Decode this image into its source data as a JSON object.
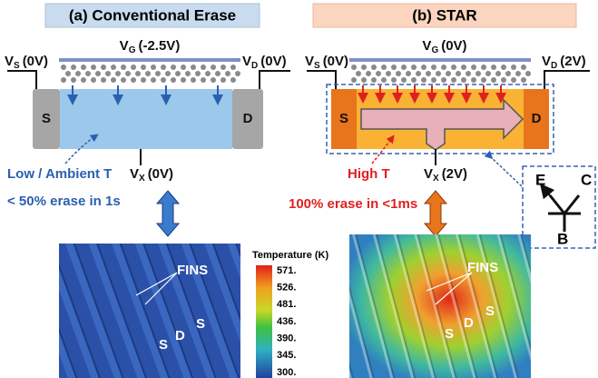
{
  "panel_a": {
    "title": "(a) Conventional Erase",
    "vg": {
      "main": "V",
      "sub": "G",
      "rest": "(-2.5V)"
    },
    "vs": {
      "main": "V",
      "sub": "S",
      "rest": "(0V)"
    },
    "vd": {
      "main": "V",
      "sub": "D",
      "rest": "(0V)"
    },
    "vx": {
      "main": "V",
      "sub": "X",
      "rest": "(0V)"
    },
    "source": "S",
    "drain": "D",
    "temperature": "Low / Ambient T",
    "erase": "< 50% erase in 1s",
    "image": {
      "label": "FINS",
      "terminals": [
        "S",
        "D",
        "S"
      ]
    }
  },
  "panel_b": {
    "title": "(b) STAR",
    "vg": {
      "main": "V",
      "sub": "G",
      "rest": "(0V)"
    },
    "vs": {
      "main": "V",
      "sub": "S",
      "rest": "(0V)"
    },
    "vd": {
      "main": "V",
      "sub": "D",
      "rest": "(2V)"
    },
    "vx": {
      "main": "V",
      "sub": "X",
      "rest": "(2V)"
    },
    "source": "S",
    "drain": "D",
    "temperature": "High T",
    "erase": "100% erase in <1ms",
    "transistor": {
      "e": "E",
      "c": "C",
      "b": "B"
    },
    "image": {
      "label": "FINS",
      "terminals": [
        "S",
        "D",
        "S"
      ]
    }
  },
  "colorbar": {
    "title": "Temperature (K)",
    "ticks": [
      "571.",
      "526.",
      "481.",
      "436.",
      "390.",
      "345.",
      "300."
    ]
  }
}
